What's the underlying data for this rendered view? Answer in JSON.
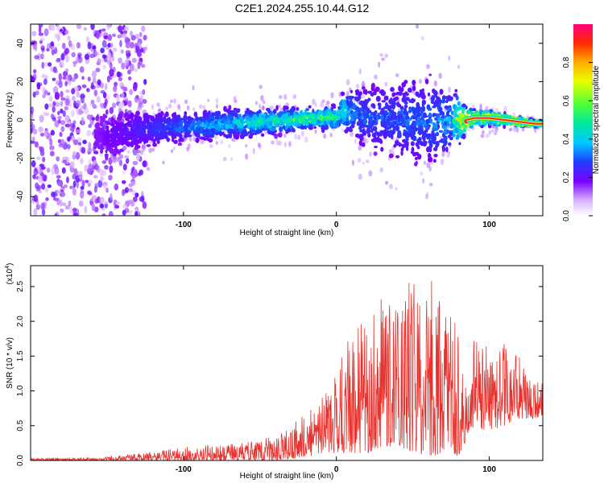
{
  "title": "C2E1.2024.255.10.44.G12",
  "chart_data": [
    {
      "type": "heatmap",
      "xlabel": "Height of straight line (km)",
      "ylabel": "Frequency (Hz)",
      "xlim": [
        -200,
        135
      ],
      "ylim": [
        -50,
        50
      ],
      "xticks": [
        -100,
        0,
        100
      ],
      "yticks": [
        -40,
        -20,
        0,
        20,
        40
      ],
      "grid": false,
      "colorbar": {
        "label": "Normalized spectral amplitude",
        "range": [
          0,
          1
        ],
        "ticks": [
          0.0,
          0.2,
          0.4,
          0.6,
          0.8
        ],
        "tick_labels": [
          "0.0",
          "0.2",
          "0.4",
          "0.6",
          "0.8"
        ]
      },
      "center_track": {
        "x": [
          -155,
          -130,
          -110,
          -90,
          -70,
          -50,
          -30,
          -15,
          0,
          5,
          15,
          30,
          45,
          60,
          75,
          85,
          90,
          100,
          110,
          120,
          130
        ],
        "y": [
          -9,
          -5,
          -4,
          -3,
          -2,
          -1,
          0,
          1,
          1,
          5,
          2,
          1,
          0,
          -1,
          0,
          0,
          1,
          1,
          0,
          -1,
          -2
        ],
        "spread_hz": [
          14,
          12,
          10,
          10,
          10,
          9,
          8,
          7,
          8,
          14,
          18,
          22,
          26,
          28,
          24,
          8,
          6,
          5,
          4,
          3,
          2
        ],
        "amplitude": [
          0.15,
          0.22,
          0.28,
          0.34,
          0.4,
          0.45,
          0.5,
          0.55,
          0.5,
          0.42,
          0.3,
          0.28,
          0.3,
          0.3,
          0.35,
          0.9,
          0.75,
          0.8,
          0.85,
          0.9,
          0.95
        ]
      }
    },
    {
      "type": "line",
      "xlabel": "Height of straight line (km)",
      "ylabel": "SNR (10 * v/v)",
      "y_multiplier_label": "(x10",
      "y_multiplier_exp": "4",
      "xlim": [
        -200,
        135
      ],
      "ylim": [
        0,
        2.8
      ],
      "xticks": [
        -100,
        0,
        100
      ],
      "yticks": [
        0.0,
        0.5,
        1.0,
        1.5,
        2.0,
        2.5
      ],
      "ytick_labels": [
        "0.0",
        "0.5",
        "1.0",
        "1.5",
        "2.0",
        "2.5"
      ],
      "grid": false,
      "color": "#e8322e",
      "envelope": {
        "x": [
          -200,
          -160,
          -140,
          -120,
          -100,
          -80,
          -60,
          -40,
          -30,
          -20,
          -10,
          -5,
          0,
          10,
          20,
          30,
          40,
          50,
          60,
          70,
          80,
          85,
          90,
          100,
          110,
          120,
          130,
          135
        ],
        "ymin": [
          0.0,
          0.0,
          0.0,
          0.0,
          0.0,
          0.0,
          0.0,
          0.0,
          0.02,
          0.05,
          0.08,
          0.1,
          0.1,
          0.1,
          0.1,
          0.2,
          0.2,
          0.1,
          0.05,
          0.1,
          0.05,
          0.3,
          0.5,
          0.4,
          0.5,
          0.6,
          0.6,
          0.65
        ],
        "ymax": [
          0.03,
          0.04,
          0.08,
          0.12,
          0.2,
          0.22,
          0.26,
          0.38,
          0.5,
          0.7,
          0.9,
          1.1,
          1.3,
          2.0,
          2.0,
          2.4,
          2.6,
          2.55,
          2.7,
          2.3,
          2.2,
          1.0,
          1.9,
          1.6,
          1.7,
          1.5,
          1.2,
          1.1
        ]
      }
    }
  ]
}
